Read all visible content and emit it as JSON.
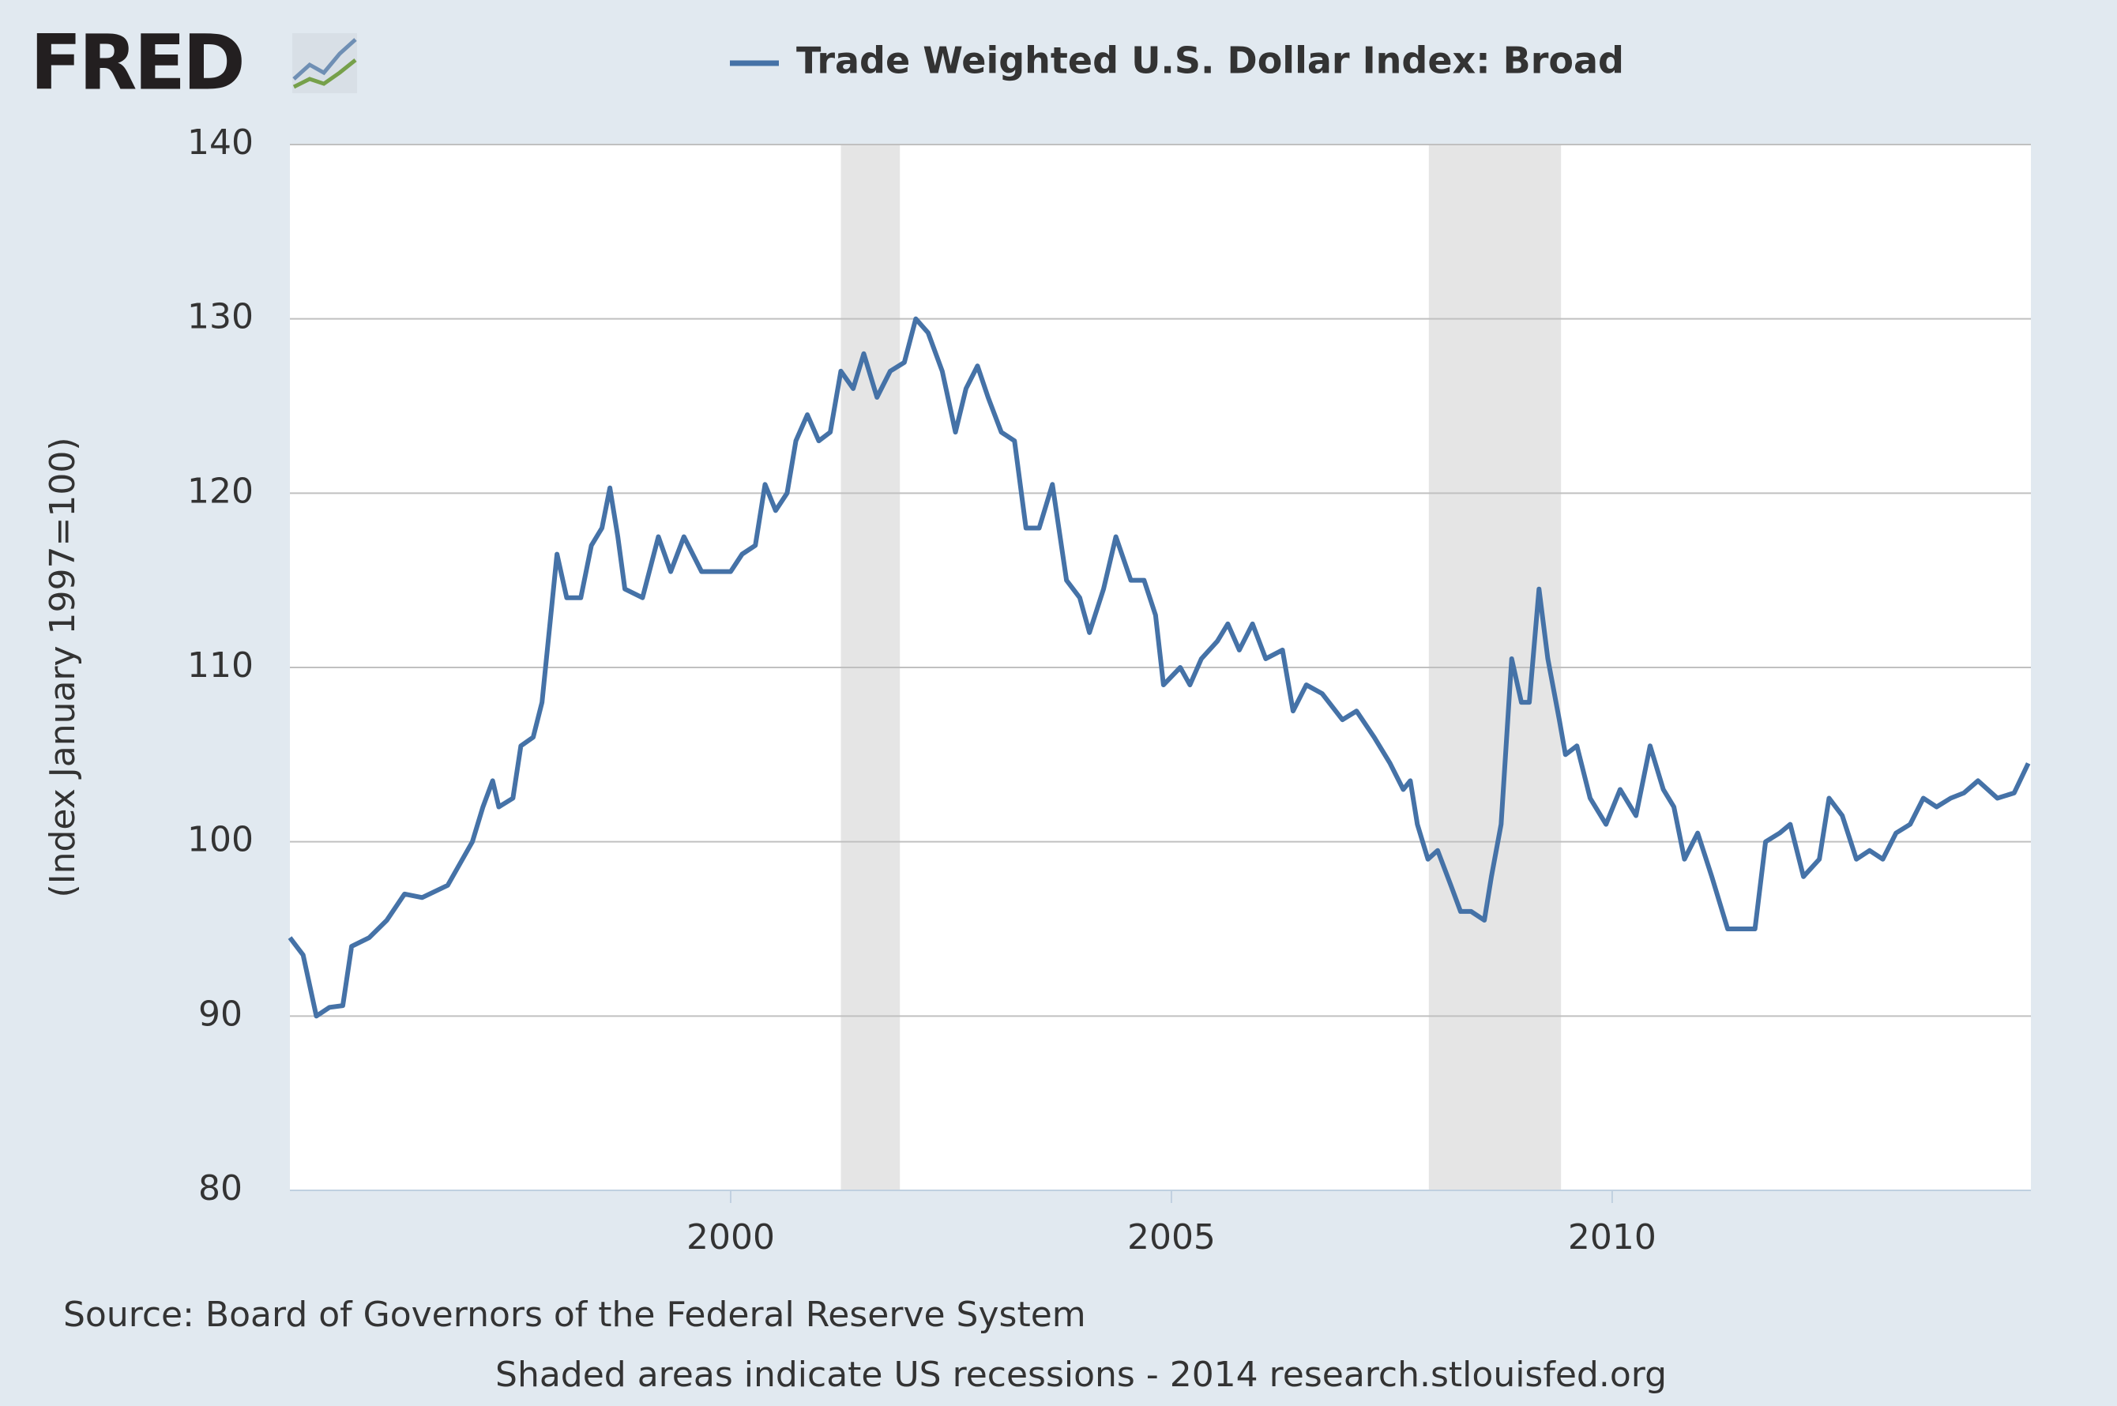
{
  "chart_data": {
    "type": "line",
    "logo": "FRED",
    "y_label": "(Index January 1997=100)",
    "source": "Source: Board of Governors of the Federal Reserve System",
    "note": "Shaded areas indicate US recessions - 2014 research.stlouisfed.org",
    "xlim": [
      1995,
      2014.75
    ],
    "xticks": [
      2000,
      2005,
      2010
    ],
    "ylim": [
      80,
      140
    ],
    "yticks": [
      80,
      90,
      100,
      110,
      120,
      130,
      140
    ],
    "grid": true,
    "recessions": [
      {
        "start": 2001.25,
        "end": 2001.92
      },
      {
        "start": 2007.92,
        "end": 2009.42
      }
    ],
    "x": [
      1995.0,
      1995.15,
      1995.3,
      1995.45,
      1995.6,
      1995.7,
      1995.9,
      1996.1,
      1996.3,
      1996.5,
      1996.79,
      1997.07,
      1997.19,
      1997.3,
      1997.37,
      1997.53,
      1997.62,
      1997.76,
      1997.86,
      1997.96,
      1998.03,
      1998.14,
      1998.3,
      1998.42,
      1998.54,
      1998.63,
      1998.72,
      1998.8,
      1999.0,
      1999.18,
      1999.32,
      1999.47,
      1999.67,
      1999.9,
      2000.0,
      2000.13,
      2000.28,
      2000.39,
      2000.51,
      2000.64,
      2000.74,
      2000.87,
      2001.0,
      2001.13,
      2001.25,
      2001.39,
      2001.51,
      2001.66,
      2001.81,
      2001.97,
      2002.1,
      2002.24,
      2002.4,
      2002.55,
      2002.67,
      2002.8,
      2002.92,
      2003.07,
      2003.22,
      2003.35,
      2003.5,
      2003.65,
      2003.81,
      2003.96,
      2004.07,
      2004.23,
      2004.37,
      2004.54,
      2004.69,
      2004.82,
      2004.91,
      2005.1,
      2005.21,
      2005.34,
      2005.52,
      2005.64,
      2005.77,
      2005.92,
      2006.07,
      2006.26,
      2006.38,
      2006.53,
      2006.71,
      2006.94,
      2007.1,
      2007.3,
      2007.48,
      2007.63,
      2007.71,
      2007.79,
      2007.91,
      2008.02,
      2008.17,
      2008.28,
      2008.4,
      2008.55,
      2008.63,
      2008.74,
      2008.86,
      2008.97,
      2009.06,
      2009.17,
      2009.27,
      2009.4,
      2009.47,
      2009.6,
      2009.75,
      2009.93,
      2010.09,
      2010.27,
      2010.43,
      2010.58,
      2010.7,
      2010.82,
      2010.97,
      2011.13,
      2011.31,
      2011.46,
      2011.62,
      2011.74,
      2011.9,
      2012.02,
      2012.17,
      2012.35,
      2012.46,
      2012.61,
      2012.77,
      2012.92,
      2013.07,
      2013.22,
      2013.38,
      2013.53,
      2013.68,
      2013.84,
      2013.99,
      2014.15,
      2014.37,
      2014.56,
      2014.72
    ],
    "series": [
      {
        "name": "Trade Weighted U.S. Dollar Index: Broad",
        "color": "#4572a7",
        "values": [
          94.5,
          93.5,
          90,
          90.5,
          90.6,
          94,
          94.5,
          95.5,
          97,
          96.8,
          97.5,
          100,
          102,
          103.5,
          102,
          102.5,
          105.5,
          106,
          108,
          113,
          116.5,
          114,
          114,
          117,
          118,
          120.3,
          117.5,
          114.5,
          114,
          117.5,
          115.5,
          117.5,
          115.5,
          115.5,
          115.5,
          116.5,
          117,
          120.5,
          119,
          120,
          123,
          124.5,
          123,
          123.5,
          127,
          126,
          128,
          125.5,
          127,
          127.5,
          130,
          129.2,
          127,
          123.5,
          126,
          127.3,
          125.5,
          123.5,
          123,
          118,
          118,
          120.5,
          115,
          114,
          112,
          114.5,
          117.5,
          115,
          115,
          113,
          109,
          110,
          109,
          110.5,
          111.5,
          112.5,
          111,
          112.5,
          110.5,
          111,
          107.5,
          109,
          108.5,
          107,
          107.5,
          106,
          104.5,
          103,
          103.5,
          101,
          99,
          99.5,
          97.5,
          96,
          96,
          95.5,
          98,
          101,
          110.5,
          108,
          108,
          114.5,
          110.5,
          107,
          105,
          105.5,
          102.5,
          101,
          103,
          101.5,
          105.5,
          103,
          102,
          99,
          100.5,
          98,
          95,
          95,
          95,
          100,
          100.5,
          101,
          98,
          99,
          102.5,
          101.5,
          99,
          99.5,
          99,
          100.5,
          101,
          102.5,
          102,
          102.5,
          102.8,
          103.5,
          102.5,
          102.8,
          104.5
        ]
      }
    ]
  }
}
